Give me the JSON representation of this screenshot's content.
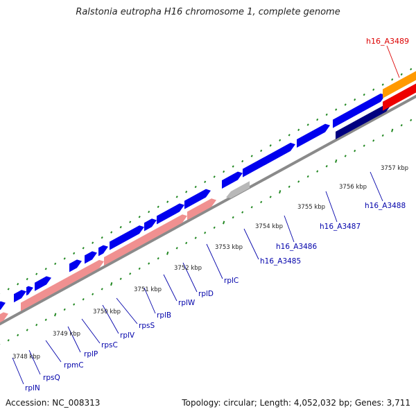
{
  "title": "Ralstonia eutropha H16 chromosome 1, complete genome",
  "footer": {
    "accession": "Accession: NC_008313",
    "summary": "Topology: circular; Length: 4,052,032 bp; Genes: 3,711"
  },
  "colors": {
    "backbone": "#8a8a8a",
    "forward_gene": "#0000ee",
    "reverse_gene": "#000080",
    "rna": "#f09090",
    "orange_feature": "#ff9900",
    "red_feature": "#ee0000",
    "grey_feature": "#b8b8b8",
    "tick": "#228822",
    "label": "#0000aa",
    "highlight_label": "#dd0000"
  },
  "ticks": [
    "3748 kbp",
    "3749 kbp",
    "3750 kbp",
    "3751 kbp",
    "3752 kbp",
    "3753 kbp",
    "3754 kbp",
    "3755 kbp",
    "3756 kbp",
    "3757 kbp"
  ],
  "gene_labels": [
    "rplN",
    "rpsQ",
    "rpmC",
    "rplP",
    "rpsC",
    "rplV",
    "rpsS",
    "rplB",
    "rplW",
    "rplD",
    "rplC",
    "h16_A3485",
    "h16_A3486",
    "h16_A3487",
    "h16_A3488"
  ],
  "top_label": "h16_A3489"
}
